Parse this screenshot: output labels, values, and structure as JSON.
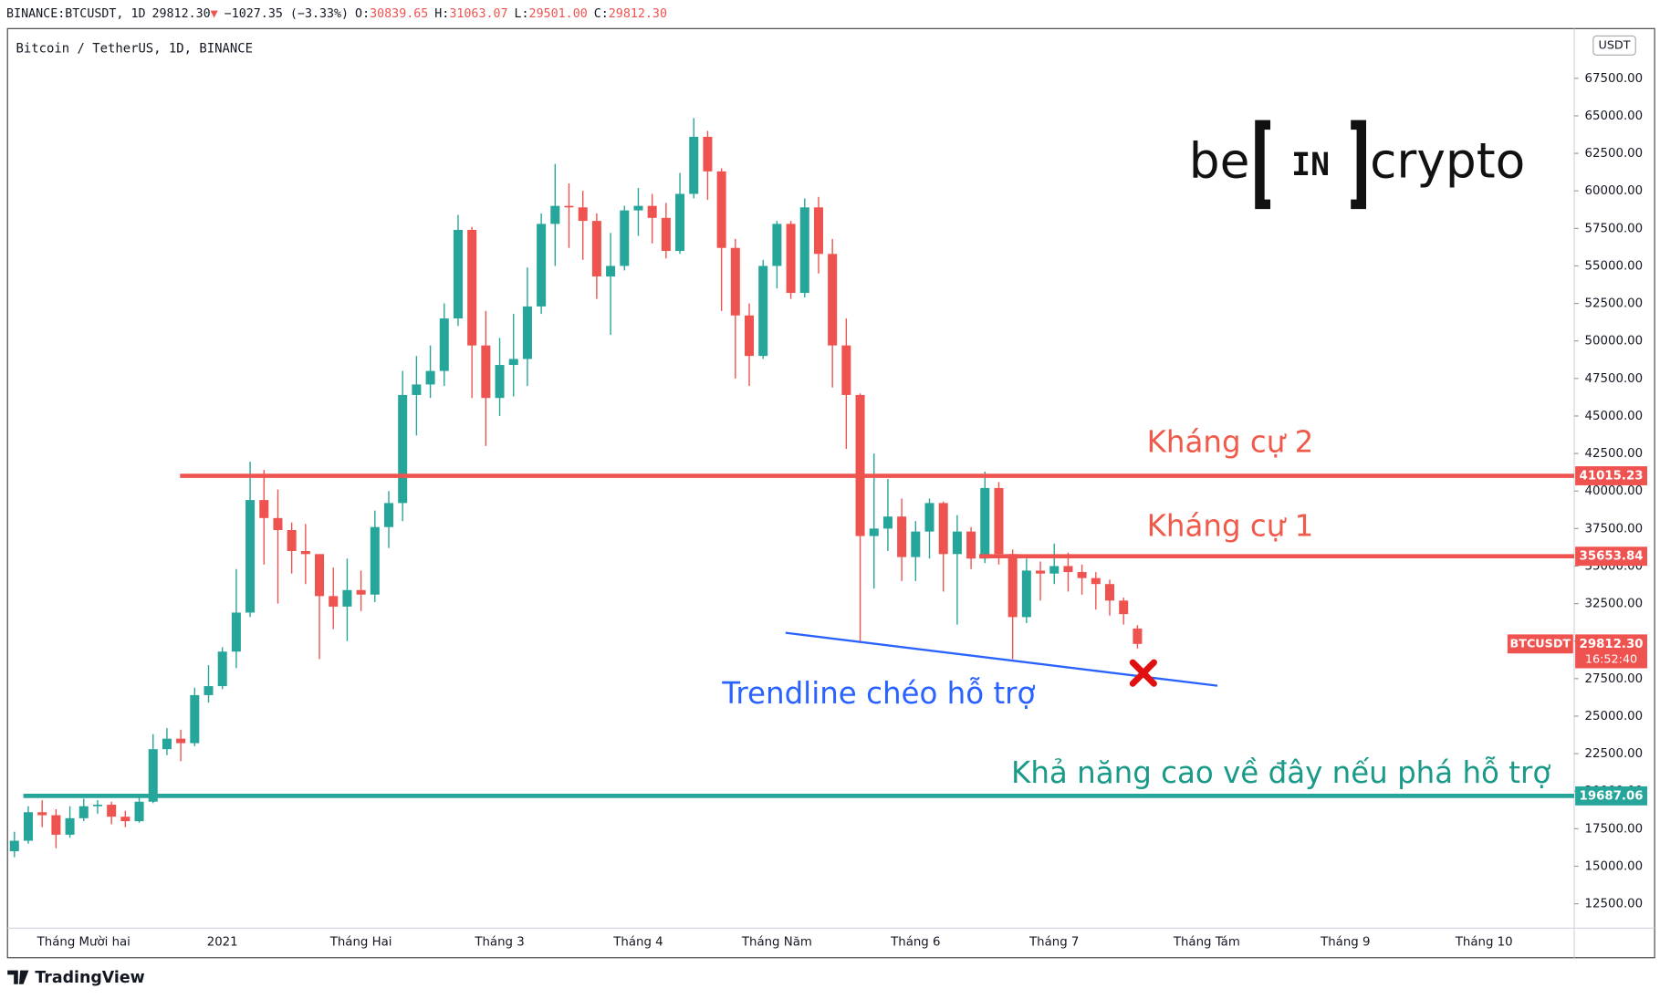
{
  "chart_data": {
    "type": "candlestick",
    "header": [
      {
        "text": "BINANCE:BTCUSDT, 1D",
        "color": "#131722"
      },
      {
        "text": "29812.30",
        "color": "#131722"
      },
      {
        "text": "▼",
        "color": "#ef5350"
      },
      {
        "text": "−1027.35 (−3.33%)",
        "color": "#131722"
      },
      {
        "text": "O:",
        "color": "#131722"
      },
      {
        "text": "30839.65",
        "color": "#ef5350"
      },
      {
        "text": "H:",
        "color": "#131722"
      },
      {
        "text": "31063.07",
        "color": "#ef5350"
      },
      {
        "text": "L:",
        "color": "#131722"
      },
      {
        "text": "29501.00",
        "color": "#ef5350"
      },
      {
        "text": "C:",
        "color": "#131722"
      },
      {
        "text": "29812.30",
        "color": "#ef5350"
      }
    ],
    "title": "Bitcoin / TetherUS, 1D, BINANCE",
    "currency": "USDT",
    "up_color": "#26a69a",
    "down_color": "#ef5350",
    "categories": [
      null,
      null,
      null,
      null,
      null,
      "Tháng Mười hai",
      null,
      null,
      null,
      null,
      null,
      null,
      null,
      null,
      null,
      "2021",
      null,
      null,
      null,
      null,
      null,
      null,
      null,
      null,
      null,
      "Tháng Hai",
      null,
      null,
      null,
      null,
      null,
      null,
      null,
      null,
      null,
      "Tháng 3",
      null,
      null,
      null,
      null,
      null,
      null,
      null,
      null,
      null,
      "Tháng 4",
      null,
      null,
      null,
      null,
      null,
      null,
      null,
      null,
      null,
      "Tháng Năm",
      null,
      null,
      null,
      null,
      null,
      null,
      null,
      null,
      null,
      "Tháng 6",
      null,
      null,
      null,
      null,
      null,
      null,
      null,
      null,
      null,
      "Tháng 7",
      null,
      null,
      null,
      null,
      null,
      null,
      null,
      null,
      null,
      null,
      "Tháng Tám",
      null,
      null,
      null,
      null,
      null,
      null,
      null,
      null,
      null,
      "Tháng 9",
      null,
      null,
      null,
      null,
      null,
      null,
      null,
      null,
      null,
      "Tháng 10",
      null,
      null,
      null,
      null,
      null,
      null
    ],
    "open": [
      16000,
      16700,
      18600,
      18400,
      17100,
      18200,
      19000,
      19100,
      18300,
      18000,
      19300,
      22800,
      23500,
      23200,
      26400,
      27000,
      29300,
      31900,
      39400,
      38200,
      37400,
      36000,
      35800,
      33000,
      32300,
      33400,
      33100,
      37600,
      39200,
      46400,
      47100,
      48000,
      51500,
      57400,
      49700,
      46200,
      48400,
      48800,
      52300,
      57800,
      59000,
      58900,
      58000,
      54300,
      55000,
      58700,
      59000,
      58200,
      56000,
      59800,
      63600,
      61300,
      56200,
      51700,
      49000,
      55000,
      57800,
      53200,
      58900,
      55800,
      49700,
      46400,
      37000,
      37500,
      38300,
      35600,
      37300,
      39200,
      35800,
      37300,
      35500,
      40200,
      35800,
      31600,
      34700,
      34500,
      35000,
      34600,
      34200,
      33800,
      32700,
      30839.65,
      null,
      null,
      null,
      null,
      null,
      null,
      null,
      null,
      null,
      null,
      null,
      null,
      null,
      null,
      null,
      null,
      null,
      null,
      null,
      null,
      null,
      null,
      null,
      null,
      null,
      null,
      null,
      null,
      null,
      null,
      null
    ],
    "high": [
      17300,
      19000,
      19400,
      18800,
      19000,
      19500,
      19400,
      19300,
      18700,
      19600,
      23800,
      24200,
      24100,
      26900,
      28400,
      29600,
      34800,
      41950,
      41400,
      40100,
      37900,
      37800,
      35600,
      34900,
      35500,
      34700,
      38700,
      40000,
      48000,
      49000,
      49700,
      52500,
      58400,
      57600,
      52000,
      50200,
      51800,
      54900,
      58500,
      61800,
      60500,
      60000,
      58500,
      57200,
      59000,
      60200,
      59800,
      59200,
      61200,
      64850,
      64000,
      61500,
      56800,
      52500,
      55400,
      58000,
      58000,
      59500,
      59600,
      56800,
      51500,
      46500,
      42500,
      40800,
      39500,
      38000,
      39500,
      39300,
      38400,
      37600,
      41300,
      40600,
      36100,
      35500,
      35300,
      36500,
      35900,
      35100,
      34600,
      34100,
      32900,
      31063.07,
      null,
      null,
      null,
      null,
      null,
      null,
      null,
      null,
      null,
      null,
      null,
      null,
      null,
      null,
      null,
      null,
      null,
      null,
      null,
      null,
      null,
      null,
      null,
      null,
      null,
      null,
      null,
      null,
      null,
      null,
      null
    ],
    "low": [
      15600,
      16500,
      17600,
      16200,
      16900,
      18000,
      18500,
      17800,
      17600,
      17900,
      19200,
      22400,
      22000,
      23000,
      25900,
      26800,
      28200,
      31600,
      35100,
      32500,
      34500,
      33800,
      28800,
      30800,
      30000,
      32000,
      32600,
      36200,
      38000,
      43700,
      46200,
      47000,
      51000,
      46200,
      43000,
      45000,
      46300,
      47000,
      51800,
      55000,
      56200,
      55400,
      52800,
      50400,
      54700,
      57000,
      56500,
      55500,
      55800,
      59500,
      59400,
      52000,
      47500,
      47000,
      48800,
      53500,
      52800,
      52900,
      54500,
      46900,
      42800,
      30000,
      33500,
      36000,
      34000,
      34000,
      35500,
      33300,
      31100,
      34800,
      35200,
      35100,
      28800,
      31200,
      32700,
      33800,
      33300,
      33100,
      32100,
      31700,
      31100,
      29501,
      null,
      null,
      null,
      null,
      null,
      null,
      null,
      null,
      null,
      null,
      null,
      null,
      null,
      null,
      null,
      null,
      null,
      null,
      null,
      null,
      null,
      null,
      null,
      null,
      null,
      null,
      null,
      null,
      null,
      null,
      null
    ],
    "close": [
      16700,
      18600,
      18400,
      17100,
      18200,
      19000,
      19100,
      18300,
      18000,
      19300,
      22800,
      23500,
      23200,
      26400,
      27000,
      29300,
      31900,
      39400,
      38200,
      37400,
      36000,
      35800,
      33000,
      32300,
      33400,
      33100,
      37600,
      39200,
      46400,
      47100,
      48000,
      51500,
      57400,
      49700,
      46200,
      48400,
      48800,
      52300,
      57800,
      59000,
      58900,
      58000,
      54300,
      55000,
      58700,
      59000,
      58200,
      56000,
      59800,
      63600,
      61300,
      56200,
      51700,
      49000,
      55000,
      57800,
      53200,
      58900,
      55800,
      49700,
      46400,
      37000,
      37500,
      38300,
      35600,
      37300,
      39200,
      35800,
      37300,
      35500,
      40200,
      35800,
      31600,
      34700,
      34500,
      35000,
      34600,
      34200,
      33800,
      32700,
      31800,
      29812.3,
      null,
      null,
      null,
      null,
      null,
      null,
      null,
      null,
      null,
      null,
      null,
      null,
      null,
      null,
      null,
      null,
      null,
      null,
      null,
      null,
      null,
      null,
      null,
      null,
      null,
      null,
      null,
      null,
      null,
      null,
      null
    ],
    "ylim": [
      10878,
      70814
    ],
    "yticks": [
      {
        "value": 12500,
        "label": "12500.00"
      },
      {
        "value": 15000,
        "label": "15000.00"
      },
      {
        "value": 17500,
        "label": "17500.00"
      },
      {
        "value": 20000,
        "label": "20000.00"
      },
      {
        "value": 22500,
        "label": "22500.00"
      },
      {
        "value": 25000,
        "label": "25000.00"
      },
      {
        "value": 27500,
        "label": "27500.00"
      },
      {
        "value": 30000,
        "label": "30000.00"
      },
      {
        "value": 32500,
        "label": "32500.00"
      },
      {
        "value": 35000,
        "label": "35000.00"
      },
      {
        "value": 37500,
        "label": "37500.00"
      },
      {
        "value": 40000,
        "label": "40000.00"
      },
      {
        "value": 42500,
        "label": "42500.00"
      },
      {
        "value": 45000,
        "label": "45000.00"
      },
      {
        "value": 47500,
        "label": "47500.00"
      },
      {
        "value": 50000,
        "label": "50000.00"
      },
      {
        "value": 52500,
        "label": "52500.00"
      },
      {
        "value": 55000,
        "label": "55000.00"
      },
      {
        "value": 57500,
        "label": "57500.00"
      },
      {
        "value": 60000,
        "label": "60000.00"
      },
      {
        "value": 62500,
        "label": "62500.00"
      },
      {
        "value": 65000,
        "label": "65000.00"
      },
      {
        "value": 67500,
        "label": "67500.00"
      }
    ],
    "grid": false,
    "levels": [
      {
        "value": 41015.23,
        "color": "#ef5350",
        "annotation": "Kháng cự 2"
      },
      {
        "value": 35653.84,
        "color": "#ef5350",
        "annotation": "Kháng cự 1"
      },
      {
        "value": 19687.06,
        "color": "#26a69a",
        "annotation": "Khả năng cao về đây nếu phá hỗ trợ"
      }
    ],
    "trendline": {
      "values": [
        30553,
        27027
      ],
      "color": "#2962ff",
      "annotation": "Trendline chéo hỗ trợ"
    },
    "last_price": {
      "symbol": "BTCUSDT",
      "price": {
        "value": 29812.3,
        "label": "29812.30"
      },
      "countdown": "16:52:40"
    },
    "logo": {
      "left": "be",
      "mid": "IN",
      "right": "crypto"
    },
    "footer": "TradingView"
  }
}
